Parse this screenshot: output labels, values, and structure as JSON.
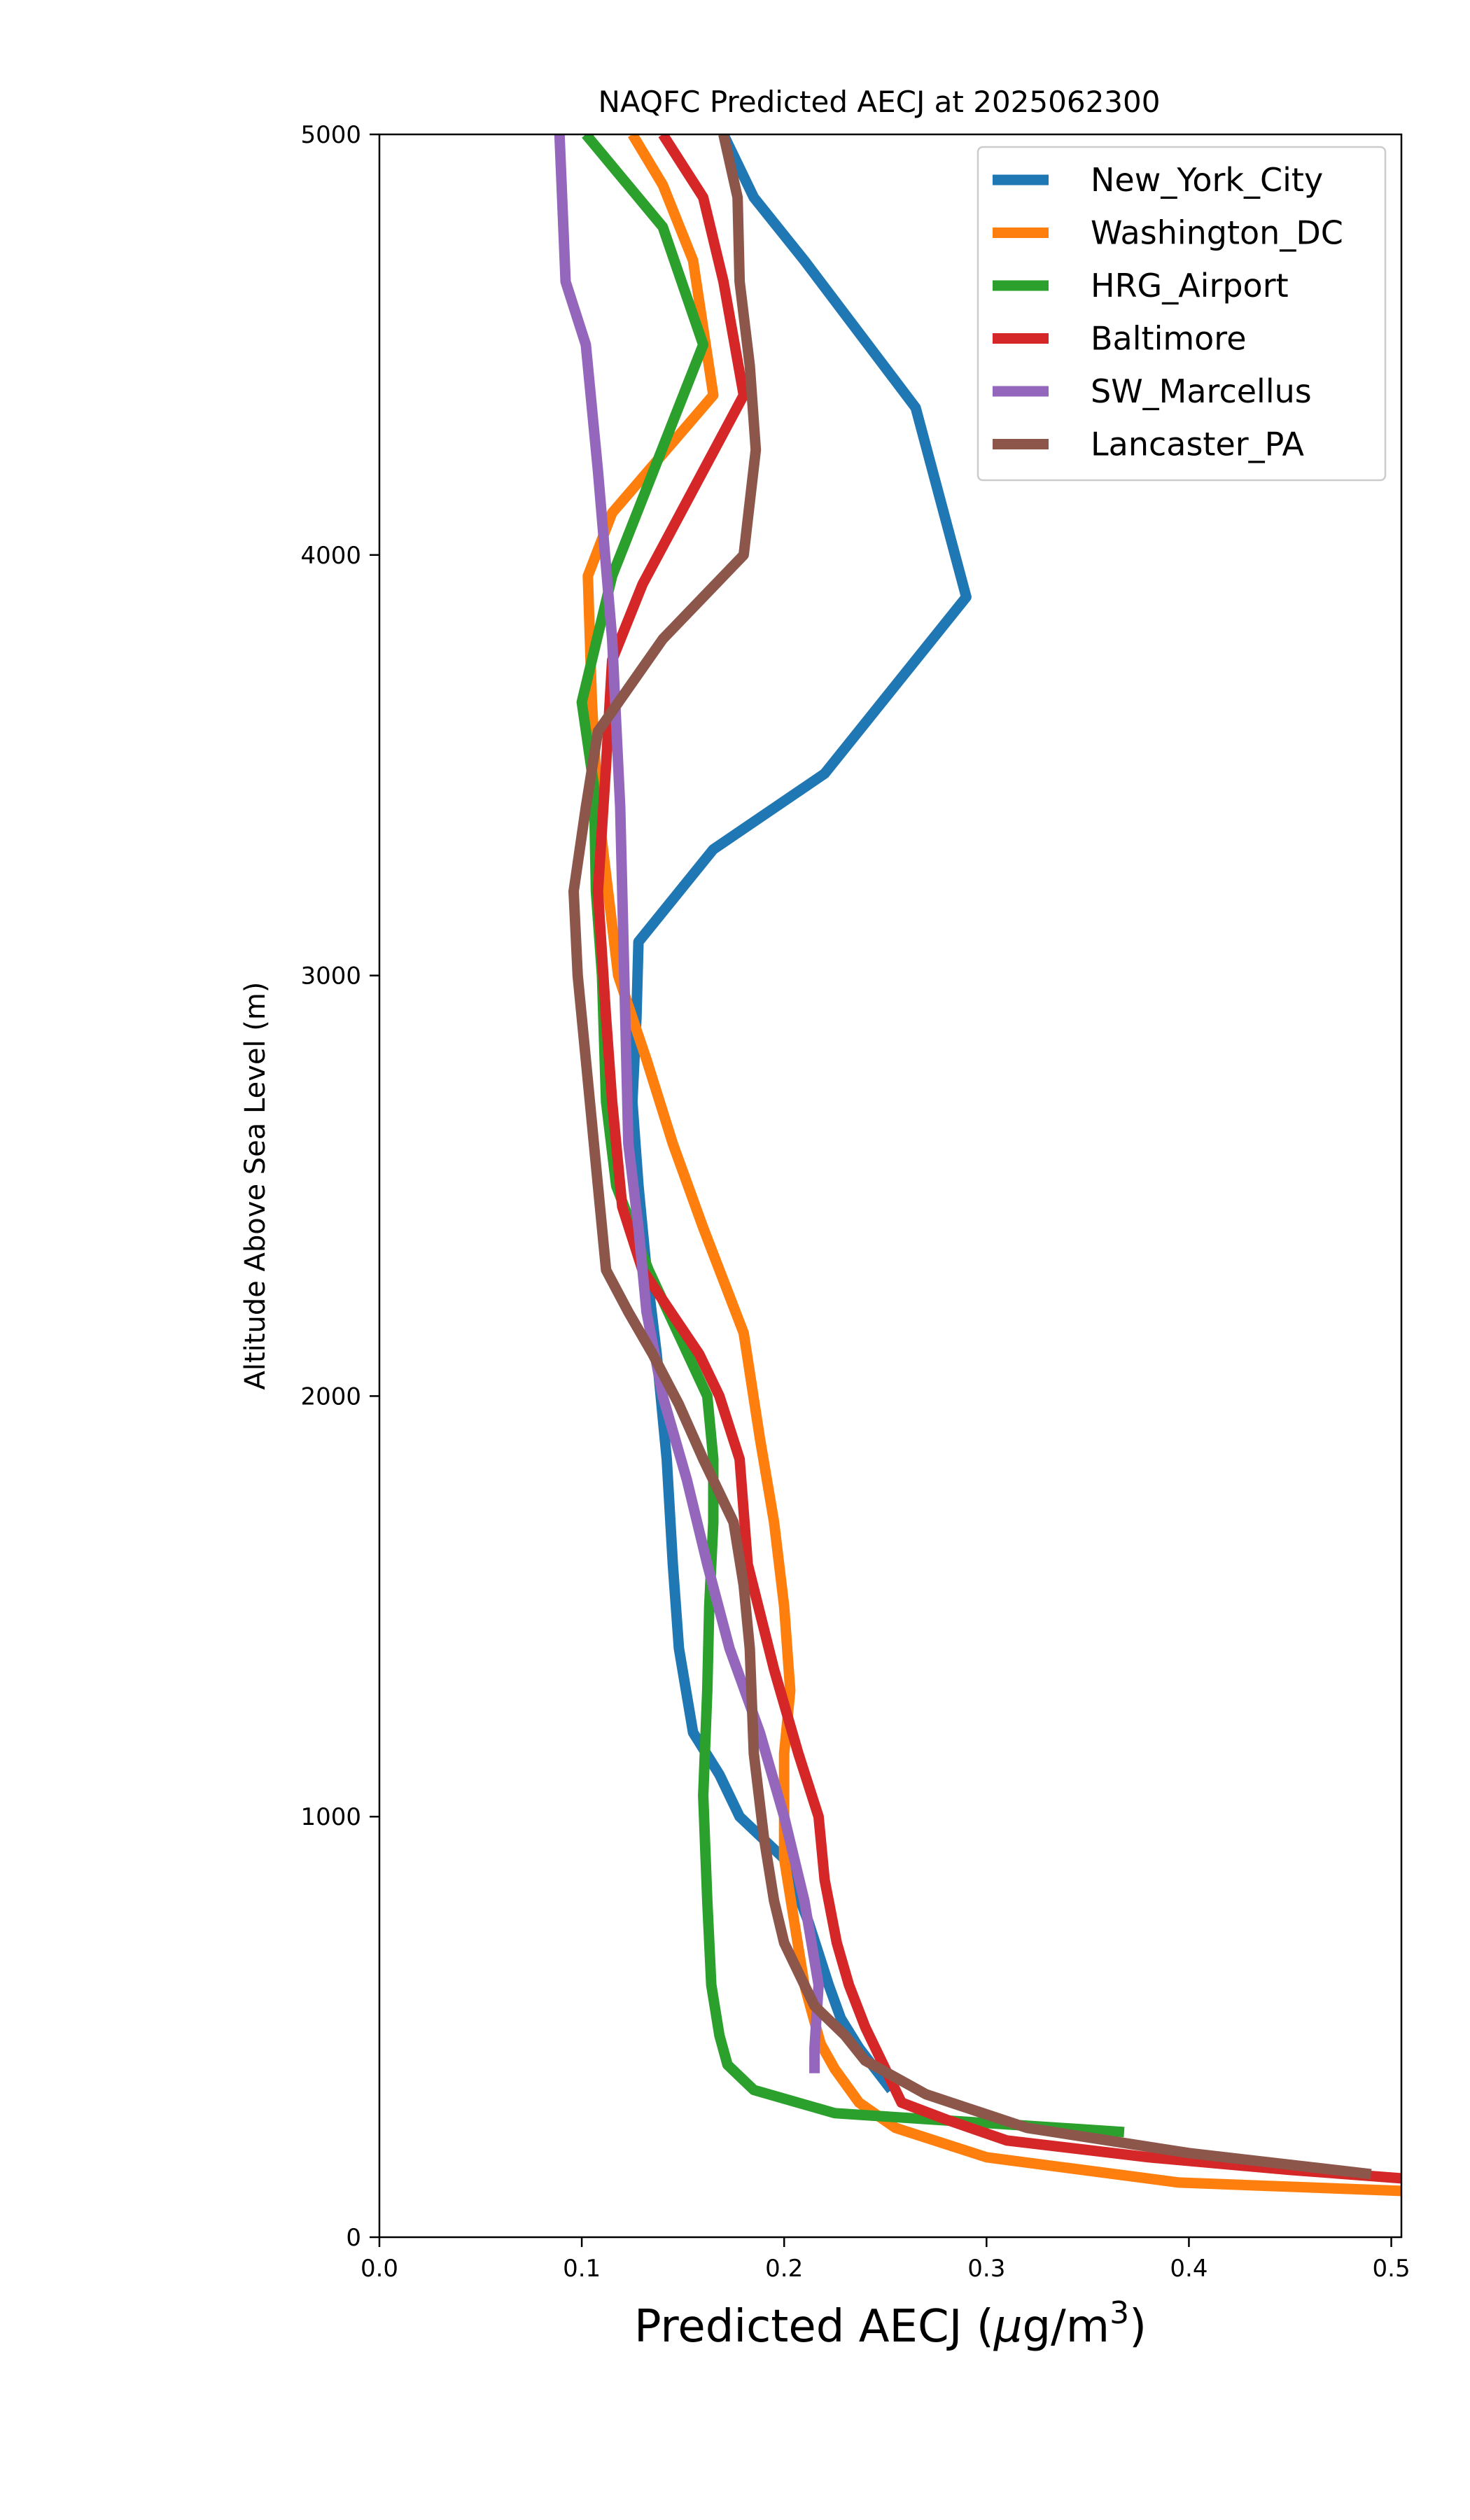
{
  "chart_data": {
    "type": "line",
    "title": "NAQFC Predicted AECJ at 2025062300",
    "xlabel": "Predicted AECJ",
    "xlabel_unit_prefix": "μ",
    "xlabel_unit_rest": "g/m",
    "xlabel_unit_exp": "3",
    "ylabel": "Altitude Above Sea Level (m)",
    "xlim": [
      0.0,
      0.505
    ],
    "ylim": [
      0,
      5000
    ],
    "xticks": [
      0.0,
      0.1,
      0.2,
      0.3,
      0.4,
      0.5
    ],
    "xtick_labels": [
      "0.0",
      "0.1",
      "0.2",
      "0.3",
      "0.4",
      "0.5"
    ],
    "yticks": [
      0,
      1000,
      2000,
      3000,
      4000,
      5000
    ],
    "ytick_labels": [
      "0",
      "1000",
      "2000",
      "3000",
      "4000",
      "5000"
    ],
    "grid": false,
    "legend_position": "top-right",
    "series": [
      {
        "name": "New_York_City",
        "color": "#1f77b4",
        "points": [
          [
            0.253,
            350
          ],
          [
            0.245,
            400
          ],
          [
            0.237,
            450
          ],
          [
            0.228,
            520
          ],
          [
            0.222,
            600
          ],
          [
            0.212,
            750
          ],
          [
            0.2,
            900
          ],
          [
            0.178,
            1000
          ],
          [
            0.168,
            1100
          ],
          [
            0.155,
            1200
          ],
          [
            0.148,
            1400
          ],
          [
            0.145,
            1600
          ],
          [
            0.142,
            1850
          ],
          [
            0.137,
            2100
          ],
          [
            0.132,
            2300
          ],
          [
            0.128,
            2500
          ],
          [
            0.125,
            2700
          ],
          [
            0.127,
            2900
          ],
          [
            0.128,
            3080
          ],
          [
            0.165,
            3300
          ],
          [
            0.22,
            3480
          ],
          [
            0.29,
            3900
          ],
          [
            0.265,
            4350
          ],
          [
            0.21,
            4700
          ],
          [
            0.185,
            4850
          ],
          [
            0.17,
            5000
          ]
        ]
      },
      {
        "name": "Washington_DC",
        "color": "#ff7f0e",
        "points": [
          [
            0.505,
            110
          ],
          [
            0.45,
            120
          ],
          [
            0.395,
            130
          ],
          [
            0.3,
            190
          ],
          [
            0.255,
            260
          ],
          [
            0.237,
            320
          ],
          [
            0.225,
            400
          ],
          [
            0.218,
            460
          ],
          [
            0.21,
            600
          ],
          [
            0.2,
            900
          ],
          [
            0.2,
            1150
          ],
          [
            0.203,
            1300
          ],
          [
            0.2,
            1500
          ],
          [
            0.195,
            1700
          ],
          [
            0.188,
            1900
          ],
          [
            0.18,
            2150
          ],
          [
            0.16,
            2400
          ],
          [
            0.145,
            2600
          ],
          [
            0.132,
            2800
          ],
          [
            0.118,
            3000
          ],
          [
            0.108,
            3400
          ],
          [
            0.105,
            3650
          ],
          [
            0.103,
            3950
          ],
          [
            0.115,
            4100
          ],
          [
            0.165,
            4380
          ],
          [
            0.155,
            4700
          ],
          [
            0.14,
            4880
          ],
          [
            0.125,
            5000
          ]
        ]
      },
      {
        "name": "HRG_Airport",
        "color": "#2ca02c",
        "points": [
          [
            0.368,
            250
          ],
          [
            0.225,
            295
          ],
          [
            0.185,
            350
          ],
          [
            0.172,
            410
          ],
          [
            0.168,
            480
          ],
          [
            0.164,
            600
          ],
          [
            0.162,
            800
          ],
          [
            0.16,
            1050
          ],
          [
            0.162,
            1300
          ],
          [
            0.163,
            1500
          ],
          [
            0.165,
            1700
          ],
          [
            0.165,
            1850
          ],
          [
            0.162,
            2000
          ],
          [
            0.133,
            2300
          ],
          [
            0.117,
            2500
          ],
          [
            0.112,
            2700
          ],
          [
            0.11,
            3000
          ],
          [
            0.107,
            3200
          ],
          [
            0.106,
            3450
          ],
          [
            0.1,
            3650
          ],
          [
            0.115,
            3950
          ],
          [
            0.16,
            4500
          ],
          [
            0.14,
            4780
          ],
          [
            0.102,
            5000
          ]
        ]
      },
      {
        "name": "Baltimore",
        "color": "#d62728",
        "points": [
          [
            0.505,
            140
          ],
          [
            0.45,
            160
          ],
          [
            0.38,
            190
          ],
          [
            0.31,
            230
          ],
          [
            0.28,
            280
          ],
          [
            0.258,
            320
          ],
          [
            0.25,
            400
          ],
          [
            0.24,
            500
          ],
          [
            0.232,
            600
          ],
          [
            0.226,
            700
          ],
          [
            0.22,
            850
          ],
          [
            0.217,
            1000
          ],
          [
            0.207,
            1150
          ],
          [
            0.195,
            1350
          ],
          [
            0.182,
            1600
          ],
          [
            0.178,
            1850
          ],
          [
            0.168,
            2000
          ],
          [
            0.158,
            2100
          ],
          [
            0.13,
            2300
          ],
          [
            0.12,
            2450
          ],
          [
            0.115,
            2700
          ],
          [
            0.112,
            2900
          ],
          [
            0.108,
            3200
          ],
          [
            0.112,
            3500
          ],
          [
            0.115,
            3750
          ],
          [
            0.13,
            3930
          ],
          [
            0.18,
            4380
          ],
          [
            0.17,
            4650
          ],
          [
            0.16,
            4850
          ],
          [
            0.14,
            5000
          ]
        ]
      },
      {
        "name": "SW_Marcellus",
        "color": "#9467bd",
        "points": [
          [
            0.215,
            390
          ],
          [
            0.215,
            450
          ],
          [
            0.217,
            600
          ],
          [
            0.21,
            800
          ],
          [
            0.2,
            1000
          ],
          [
            0.188,
            1200
          ],
          [
            0.173,
            1400
          ],
          [
            0.162,
            1600
          ],
          [
            0.152,
            1800
          ],
          [
            0.14,
            2000
          ],
          [
            0.132,
            2200
          ],
          [
            0.128,
            2400
          ],
          [
            0.123,
            2600
          ],
          [
            0.122,
            2800
          ],
          [
            0.121,
            3000
          ],
          [
            0.12,
            3200
          ],
          [
            0.119,
            3400
          ],
          [
            0.115,
            3800
          ],
          [
            0.108,
            4200
          ],
          [
            0.102,
            4500
          ],
          [
            0.092,
            4650
          ],
          [
            0.089,
            5000
          ]
        ]
      },
      {
        "name": "Lancaster_PA",
        "color": "#8c564b",
        "points": [
          [
            0.49,
            150
          ],
          [
            0.4,
            200
          ],
          [
            0.32,
            260
          ],
          [
            0.27,
            340
          ],
          [
            0.24,
            420
          ],
          [
            0.23,
            480
          ],
          [
            0.215,
            550
          ],
          [
            0.2,
            700
          ],
          [
            0.195,
            800
          ],
          [
            0.19,
            950
          ],
          [
            0.185,
            1150
          ],
          [
            0.183,
            1400
          ],
          [
            0.18,
            1550
          ],
          [
            0.175,
            1700
          ],
          [
            0.16,
            1850
          ],
          [
            0.148,
            1980
          ],
          [
            0.135,
            2100
          ],
          [
            0.123,
            2200
          ],
          [
            0.112,
            2300
          ],
          [
            0.108,
            2500
          ],
          [
            0.102,
            2800
          ],
          [
            0.098,
            3000
          ],
          [
            0.096,
            3200
          ],
          [
            0.102,
            3400
          ],
          [
            0.108,
            3580
          ],
          [
            0.14,
            3800
          ],
          [
            0.18,
            4000
          ],
          [
            0.186,
            4250
          ],
          [
            0.183,
            4450
          ],
          [
            0.178,
            4650
          ],
          [
            0.177,
            4850
          ],
          [
            0.17,
            5000
          ]
        ]
      }
    ]
  }
}
